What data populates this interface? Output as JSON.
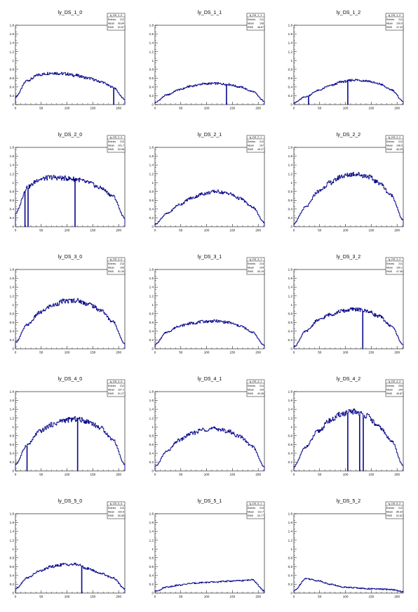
{
  "colors": {
    "line": "#0c0c8c",
    "axis": "#000000",
    "background": "#ffffff"
  },
  "chart_data": [
    {
      "type": "histogram",
      "title": "ly_DS_1_0",
      "stats": {
        "name": "ly_DS_1_0",
        "entries": "212",
        "mean": "99.84",
        "rms": "51.87"
      },
      "ylim": [
        0,
        1.8
      ],
      "xlim": [
        0,
        212
      ],
      "yticks": [
        "0",
        "0.2",
        "0.4",
        "0.6",
        "0.8",
        "1",
        "1.2",
        "1.4",
        "1.6",
        "1.8"
      ],
      "xticks": [
        "0",
        "50",
        "100",
        "150",
        "200"
      ],
      "values": [
        0.18,
        0.55,
        0.68,
        0.72,
        0.7,
        0.66,
        0.6,
        0.52,
        0.4,
        0.12
      ],
      "spikes": [
        [
          190,
          0
        ]
      ]
    },
    {
      "type": "histogram",
      "title": "ly_DS_1_1",
      "stats": {
        "name": "ly_DS_1_1",
        "entries": "211",
        "mean": "108",
        "rms": "48.67"
      },
      "ylim": [
        0,
        1.8
      ],
      "xlim": [
        0,
        212
      ],
      "yticks": [
        "0",
        "0.2",
        "0.4",
        "0.6",
        "0.8",
        "1",
        "1.2",
        "1.4",
        "1.6",
        "1.8"
      ],
      "xticks": [
        "0",
        "50",
        "100",
        "150",
        "200"
      ],
      "values": [
        0.05,
        0.22,
        0.34,
        0.42,
        0.47,
        0.48,
        0.46,
        0.4,
        0.3,
        0.08
      ],
      "spikes": [
        [
          138,
          0
        ]
      ]
    },
    {
      "type": "histogram",
      "title": "ly_DS_1_2",
      "stats": {
        "name": "ly_DS_1_2",
        "entries": "211",
        "mean": "109.9",
        "rms": "47.42"
      },
      "ylim": [
        0,
        1.8
      ],
      "xlim": [
        0,
        212
      ],
      "yticks": [
        "0",
        "0.2",
        "0.4",
        "0.6",
        "0.8",
        "1",
        "1.2",
        "1.4",
        "1.6",
        "1.8"
      ],
      "xticks": [
        "0",
        "50",
        "100",
        "150",
        "200"
      ],
      "values": [
        0.04,
        0.18,
        0.32,
        0.43,
        0.52,
        0.56,
        0.54,
        0.47,
        0.34,
        0.08
      ],
      "spikes": [
        [
          28,
          0
        ],
        [
          104,
          0
        ]
      ]
    },
    {
      "type": "histogram",
      "title": "ly_DS_2_0",
      "stats": {
        "name": "ly_DS_2_0",
        "entries": "210",
        "mean": "101.7",
        "rms": "53.56"
      },
      "ylim": [
        0,
        1.8
      ],
      "xlim": [
        0,
        212
      ],
      "yticks": [
        "0",
        "0.2",
        "0.4",
        "0.6",
        "0.8",
        "1",
        "1.2",
        "1.4",
        "1.6",
        "1.8"
      ],
      "xticks": [
        "0",
        "50",
        "100",
        "150",
        "200"
      ],
      "values": [
        0.3,
        0.9,
        1.08,
        1.12,
        1.1,
        1.08,
        1.0,
        0.88,
        0.7,
        0.2
      ],
      "spikes": [
        [
          18,
          0
        ],
        [
          24,
          0
        ],
        [
          115,
          0
        ]
      ]
    },
    {
      "type": "histogram",
      "title": "ly_DS_2_1",
      "stats": {
        "name": "ly_DS_2_1",
        "entries": "214",
        "mean": "107",
        "rms": "49.27"
      },
      "ylim": [
        0,
        1.8
      ],
      "xlim": [
        0,
        212
      ],
      "yticks": [
        "0",
        "0.2",
        "0.4",
        "0.6",
        "0.8",
        "1",
        "1.2",
        "1.4",
        "1.6",
        "1.8"
      ],
      "xticks": [
        "0",
        "50",
        "100",
        "150",
        "200"
      ],
      "values": [
        0.06,
        0.3,
        0.5,
        0.65,
        0.75,
        0.8,
        0.76,
        0.64,
        0.45,
        0.1
      ],
      "spikes": []
    },
    {
      "type": "histogram",
      "title": "ly_DS_2_2",
      "stats": {
        "name": "ly_DS_2_2",
        "entries": "212",
        "mean": "108.5",
        "rms": "46.25"
      },
      "ylim": [
        0,
        1.8
      ],
      "xlim": [
        0,
        212
      ],
      "yticks": [
        "0",
        "0.2",
        "0.4",
        "0.6",
        "0.8",
        "1",
        "1.2",
        "1.4",
        "1.6",
        "1.8"
      ],
      "xticks": [
        "0",
        "50",
        "100",
        "150",
        "200"
      ],
      "values": [
        0.08,
        0.45,
        0.8,
        1.0,
        1.15,
        1.2,
        1.15,
        1.0,
        0.72,
        0.15
      ],
      "spikes": []
    },
    {
      "type": "histogram",
      "title": "ly_DS_3_0",
      "stats": {
        "name": "ly_DS_3_0",
        "entries": "214",
        "mean": "105",
        "rms": "51.26"
      },
      "ylim": [
        0,
        1.8
      ],
      "xlim": [
        0,
        212
      ],
      "yticks": [
        "0",
        "0.2",
        "0.4",
        "0.6",
        "0.8",
        "1",
        "1.2",
        "1.4",
        "1.6",
        "1.8"
      ],
      "xticks": [
        "0",
        "50",
        "100",
        "150",
        "200"
      ],
      "values": [
        0.15,
        0.55,
        0.82,
        0.98,
        1.08,
        1.1,
        1.02,
        0.88,
        0.62,
        0.12
      ],
      "spikes": []
    },
    {
      "type": "histogram",
      "title": "ly_DS_3_1",
      "stats": {
        "name": "ly_DS_3_1",
        "entries": "214",
        "mean": "104",
        "rms": "50.19"
      },
      "ylim": [
        0,
        1.8
      ],
      "xlim": [
        0,
        212
      ],
      "yticks": [
        "0",
        "0.2",
        "0.4",
        "0.6",
        "0.8",
        "1",
        "1.2",
        "1.4",
        "1.6",
        "1.8"
      ],
      "xticks": [
        "0",
        "50",
        "100",
        "150",
        "200"
      ],
      "values": [
        0.1,
        0.38,
        0.52,
        0.58,
        0.62,
        0.63,
        0.6,
        0.52,
        0.38,
        0.08
      ],
      "spikes": []
    },
    {
      "type": "histogram",
      "title": "ly_DS_3_2",
      "stats": {
        "name": "ly_DS_3_2",
        "entries": "211",
        "mean": "105.1",
        "rms": "47.46"
      },
      "ylim": [
        0,
        1.8
      ],
      "xlim": [
        0,
        212
      ],
      "yticks": [
        "0",
        "0.2",
        "0.4",
        "0.6",
        "0.8",
        "1",
        "1.2",
        "1.4",
        "1.6",
        "1.8"
      ],
      "xticks": [
        "0",
        "50",
        "100",
        "150",
        "200"
      ],
      "values": [
        0.05,
        0.4,
        0.65,
        0.78,
        0.86,
        0.9,
        0.86,
        0.74,
        0.52,
        0.1
      ],
      "spikes": [
        [
          133,
          0
        ]
      ]
    },
    {
      "type": "histogram",
      "title": "ly_DS_4_0",
      "stats": {
        "name": "ly_DS_4_0",
        "entries": "212",
        "mean": "107.1",
        "rms": "51.27"
      },
      "ylim": [
        0,
        1.8
      ],
      "xlim": [
        0,
        212
      ],
      "yticks": [
        "0",
        "0.2",
        "0.4",
        "0.6",
        "0.8",
        "1",
        "1.2",
        "1.4",
        "1.6",
        "1.8"
      ],
      "xticks": [
        "0",
        "50",
        "100",
        "150",
        "200"
      ],
      "values": [
        0.15,
        0.6,
        0.9,
        1.05,
        1.15,
        1.18,
        1.12,
        0.98,
        0.72,
        0.15
      ],
      "spikes": [
        [
          22,
          0
        ],
        [
          120,
          0
        ]
      ]
    },
    {
      "type": "histogram",
      "title": "ly_DS_4_1",
      "stats": {
        "name": "ly_DS_4_1",
        "entries": "214",
        "mean": "104",
        "rms": "49.38"
      },
      "ylim": [
        0,
        1.8
      ],
      "xlim": [
        0,
        212
      ],
      "yticks": [
        "0",
        "0.2",
        "0.4",
        "0.6",
        "0.8",
        "1",
        "1.2",
        "1.4",
        "1.6",
        "1.8"
      ],
      "xticks": [
        "0",
        "50",
        "100",
        "150",
        "200"
      ],
      "values": [
        0.1,
        0.45,
        0.7,
        0.85,
        0.94,
        0.96,
        0.9,
        0.78,
        0.56,
        0.1
      ],
      "spikes": []
    },
    {
      "type": "histogram",
      "title": "ly_DS_4_2",
      "stats": {
        "name": "ly_DS_4_2",
        "entries": "209",
        "mean": "104",
        "rms": "46.87"
      },
      "ylim": [
        0,
        1.8
      ],
      "xlim": [
        0,
        212
      ],
      "yticks": [
        "0",
        "0.2",
        "0.4",
        "0.6",
        "0.8",
        "1",
        "1.2",
        "1.4",
        "1.6",
        "1.8"
      ],
      "xticks": [
        "0",
        "50",
        "100",
        "150",
        "200"
      ],
      "values": [
        0.1,
        0.55,
        0.9,
        1.15,
        1.3,
        1.35,
        1.25,
        1.0,
        0.7,
        0.12
      ],
      "spikes": [
        [
          104,
          0
        ],
        [
          127,
          0
        ],
        [
          134,
          0
        ]
      ]
    },
    {
      "type": "histogram",
      "title": "ly_DS_5_0",
      "stats": {
        "name": "ly_DS_5_0",
        "entries": "213",
        "mean": "102.6",
        "rms": "50.85"
      },
      "ylim": [
        0,
        1.8
      ],
      "xlim": [
        0,
        212
      ],
      "yticks": [
        "0",
        "0.2",
        "0.4",
        "0.6",
        "0.8",
        "1",
        "1.2",
        "1.4",
        "1.6",
        "1.8"
      ],
      "xticks": [
        "0",
        "50",
        "100",
        "150",
        "200"
      ],
      "values": [
        0.1,
        0.35,
        0.5,
        0.6,
        0.65,
        0.65,
        0.55,
        0.45,
        0.35,
        0.1
      ],
      "spikes": [
        [
          128,
          0
        ]
      ]
    },
    {
      "type": "histogram",
      "title": "ly_DS_5_1",
      "stats": {
        "name": "ly_DS_5_1",
        "entries": "213",
        "mean": "112.7",
        "rms": "53.77"
      },
      "ylim": [
        0,
        1.8
      ],
      "xlim": [
        0,
        212
      ],
      "yticks": [
        "0",
        "0.2",
        "0.4",
        "0.6",
        "0.8",
        "1",
        "1.2",
        "1.4",
        "1.6",
        "1.8"
      ],
      "xticks": [
        "0",
        "50",
        "100",
        "150",
        "200"
      ],
      "values": [
        0.04,
        0.14,
        0.18,
        0.22,
        0.24,
        0.25,
        0.27,
        0.28,
        0.3,
        0.05
      ],
      "spikes": []
    },
    {
      "type": "histogram",
      "title": "ly_DS_5_2",
      "stats": {
        "name": "ly_DS_5_2",
        "entries": "212",
        "mean": "85.33",
        "rms": "51.62"
      },
      "ylim": [
        0,
        1.8
      ],
      "xlim": [
        0,
        212
      ],
      "yticks": [
        "0",
        "0.2",
        "0.4",
        "0.6",
        "0.8",
        "1",
        "1.2",
        "1.4",
        "1.6",
        "1.8"
      ],
      "xticks": [
        "0",
        "50",
        "100",
        "150",
        "200"
      ],
      "values": [
        0.05,
        0.33,
        0.28,
        0.2,
        0.14,
        0.12,
        0.1,
        0.09,
        0.08,
        0.03
      ],
      "spikes": []
    }
  ]
}
